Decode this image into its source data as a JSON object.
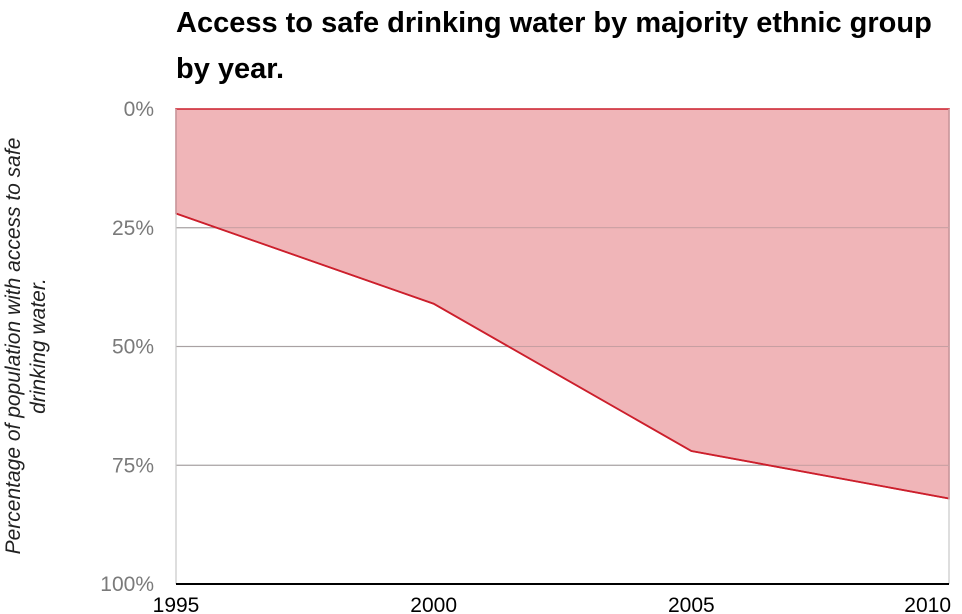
{
  "chart_data": {
    "type": "area",
    "title": "Access to safe drinking water by majority ethnic group by year.",
    "xlabel": "",
    "ylabel": "Percentage of population with access to safe drinking water.",
    "x": [
      1995,
      2000,
      2005,
      2010
    ],
    "x_ticks": [
      "1995",
      "2000",
      "2005",
      "2010"
    ],
    "y_ticks": [
      "0%",
      "25%",
      "50%",
      "75%",
      "100%"
    ],
    "y_tick_values": [
      0,
      25,
      50,
      75,
      100
    ],
    "ylim": [
      0,
      100
    ],
    "y_axis_inverted": true,
    "series": [
      {
        "values": [
          22,
          41,
          72,
          82
        ]
      }
    ],
    "grid": true,
    "colors": {
      "fill": "#eeadb0",
      "line": "#cc1f2c",
      "grid": "#b3b3b3",
      "tick_text": "#7a7a7a",
      "axis": "#000000"
    }
  }
}
